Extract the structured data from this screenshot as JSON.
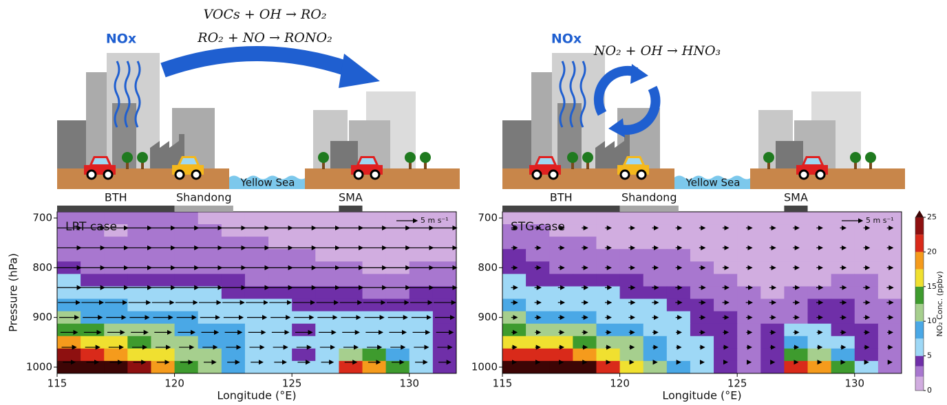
{
  "illustration": {
    "left": {
      "label": "NOx",
      "equations": [
        "VOCs + OH → RO₂",
        "RO₂ + NO → RONO₂"
      ],
      "sea": "Yellow Sea"
    },
    "right": {
      "label": "NOx",
      "equations": [
        "NO₂ + OH → HNO₃"
      ],
      "sea": "Yellow Sea"
    }
  },
  "chart_data": [
    {
      "type": "contour",
      "title": "LRT case",
      "xlabel": "Longitude (°E)",
      "ylabel": "Pressure (hPa)",
      "xlim": [
        115,
        132
      ],
      "xticks": [
        115,
        120,
        125,
        130
      ],
      "ylim": [
        1012.5,
        687.5
      ],
      "yticks": [
        700,
        800,
        900,
        1000
      ],
      "x": [
        115.5,
        116.5,
        117.5,
        118.5,
        119.5,
        120.5,
        121.5,
        122.5,
        123.5,
        124.5,
        125.5,
        126.5,
        127.5,
        128.5,
        129.5,
        130.5,
        131.5
      ],
      "y": [
        700,
        725,
        750,
        775,
        800,
        825,
        850,
        875,
        900,
        925,
        950,
        975,
        1000
      ],
      "z": [
        [
          2.5,
          2.5,
          2.5,
          2.5,
          2.5,
          2.5,
          1.5,
          1.5,
          1.5,
          1.5,
          1.5,
          1.5,
          1.5,
          1.5,
          1.5,
          1.5,
          1.5
        ],
        [
          2.5,
          2.5,
          1.5,
          2.5,
          2.5,
          2.5,
          2.5,
          1.5,
          1.5,
          1.5,
          1.5,
          1.5,
          1.5,
          1.5,
          1.5,
          1.5,
          1.5
        ],
        [
          2.5,
          2.5,
          2.5,
          2.5,
          2.5,
          2.5,
          2.5,
          2.5,
          2.5,
          1.5,
          1.5,
          1.5,
          1.5,
          1.5,
          1.5,
          1.5,
          1.5
        ],
        [
          3,
          3,
          2.5,
          2.5,
          2.5,
          2.5,
          2.5,
          2.5,
          2.5,
          2.5,
          2.5,
          1.5,
          1.5,
          1.5,
          1.5,
          1.5,
          1.5
        ],
        [
          4,
          3,
          3,
          3,
          3,
          3,
          3,
          3,
          3,
          3,
          3,
          2.5,
          2.5,
          1.5,
          1.5,
          2.5,
          2.5
        ],
        [
          6,
          4,
          4,
          4,
          4,
          4,
          4,
          4,
          3,
          3,
          3,
          3,
          3,
          2.5,
          2.5,
          3,
          3
        ],
        [
          7,
          6,
          6,
          6,
          6,
          6,
          6,
          4.5,
          4.5,
          4.5,
          4.5,
          4.5,
          4.5,
          3,
          2.5,
          4,
          4
        ],
        [
          9,
          8,
          8,
          7,
          7,
          7,
          6,
          6,
          6,
          6,
          4.5,
          4.5,
          4.5,
          4.5,
          4.5,
          4.5,
          4.5
        ],
        [
          11,
          9,
          9,
          9,
          8,
          8,
          7,
          6,
          6,
          6,
          6,
          6,
          6,
          6,
          6,
          6,
          4.5
        ],
        [
          14,
          13,
          12,
          11,
          10,
          9,
          8,
          8,
          6,
          6,
          4.5,
          6,
          6,
          6,
          6,
          6,
          4.5
        ],
        [
          18,
          17,
          16,
          14,
          12,
          11,
          9,
          8,
          7,
          6,
          6,
          6,
          6,
          6,
          6,
          6,
          4.5
        ],
        [
          23,
          21,
          19,
          17,
          15,
          12,
          10,
          9,
          7,
          6,
          4.5,
          6,
          12,
          13,
          8,
          6,
          4.5
        ],
        [
          27,
          27,
          26,
          23,
          19,
          14,
          11,
          9,
          7,
          6,
          6,
          6,
          22,
          19,
          14,
          7,
          4.5
        ]
      ],
      "regions": [
        {
          "name": "BTH",
          "range": [
            115,
            120
          ],
          "color": "#444444"
        },
        {
          "name": "Shandong",
          "range": [
            120,
            122.5
          ],
          "color": "#a6a6a6"
        },
        {
          "name": "SMA",
          "range": [
            127,
            128
          ],
          "color": "#444444"
        }
      ],
      "wind": {
        "p": [
          720,
          760,
          800,
          840,
          870,
          900,
          930,
          960,
          990
        ],
        "u": [
          5,
          5,
          5,
          5,
          4.5,
          4,
          3.5,
          3,
          2.5
        ],
        "key": {
          "value": 5,
          "label": "5 m s⁻¹"
        }
      }
    },
    {
      "type": "contour",
      "title": "STG case",
      "xlabel": "Longitude (°E)",
      "xlim": [
        115,
        132
      ],
      "xticks": [
        115,
        120,
        125,
        130
      ],
      "ylim": [
        1012.5,
        687.5
      ],
      "yticks": [
        700,
        800,
        900,
        1000
      ],
      "x": [
        115.5,
        116.5,
        117.5,
        118.5,
        119.5,
        120.5,
        121.5,
        122.5,
        123.5,
        124.5,
        125.5,
        126.5,
        127.5,
        128.5,
        129.5,
        130.5,
        131.5
      ],
      "y": [
        700,
        725,
        750,
        775,
        800,
        825,
        850,
        875,
        900,
        925,
        950,
        975,
        1000
      ],
      "z": [
        [
          1.5,
          1.5,
          1.5,
          1.5,
          1.5,
          1.5,
          1.5,
          1.5,
          1.5,
          1.5,
          1.5,
          1.5,
          1.5,
          1.5,
          1.5,
          1.5,
          1.5
        ],
        [
          3,
          2.5,
          1.5,
          1.5,
          1.5,
          1.5,
          1.5,
          1.5,
          1.5,
          1.5,
          1.5,
          1.5,
          1.5,
          1.5,
          1.5,
          1.5,
          1.5
        ],
        [
          3,
          3,
          2.5,
          2.5,
          1.5,
          1.5,
          1.5,
          1.5,
          1.5,
          1.5,
          1.5,
          1.5,
          1.5,
          1.5,
          1.5,
          1.5,
          1.5
        ],
        [
          4,
          3,
          3,
          2.5,
          2.5,
          2.5,
          2.5,
          2.5,
          1.5,
          1.5,
          1.5,
          1.5,
          1.5,
          1.5,
          1.5,
          1.5,
          1.5
        ],
        [
          4.5,
          4,
          3,
          3,
          3,
          3,
          3,
          3,
          2.5,
          1.5,
          1.5,
          1.5,
          1.5,
          1.5,
          1.5,
          1.5,
          1.5
        ],
        [
          6,
          4.5,
          4,
          4,
          4,
          4,
          3,
          3,
          3,
          2.5,
          1.5,
          1.5,
          1.5,
          1.5,
          2.5,
          2.5,
          1.5
        ],
        [
          7,
          6,
          6,
          6,
          6,
          4.5,
          4.5,
          4,
          3,
          3,
          2.5,
          1.5,
          2.5,
          3,
          3,
          3,
          1.5
        ],
        [
          8,
          7,
          7,
          6,
          6,
          6,
          6,
          4.5,
          4.5,
          3,
          3,
          2.5,
          3,
          4,
          4,
          3,
          2.5
        ],
        [
          10,
          9,
          8,
          8,
          7,
          6,
          6,
          6,
          4.5,
          4,
          3,
          3,
          3,
          4.5,
          4.5,
          3,
          2.5
        ],
        [
          13,
          12,
          11,
          10,
          9,
          8,
          7,
          6,
          4.5,
          4,
          3,
          4,
          6,
          6,
          4.5,
          4,
          2.5
        ],
        [
          17,
          16,
          15,
          14,
          11,
          10,
          8,
          7,
          6,
          4.5,
          3,
          4,
          9,
          7,
          6,
          4,
          2.5
        ],
        [
          22,
          21,
          20,
          19,
          15,
          12,
          9,
          7,
          6,
          4.5,
          3,
          4.5,
          14,
          12,
          9,
          4.5,
          3
        ],
        [
          27,
          27,
          26,
          25,
          20,
          15,
          10,
          8,
          6,
          4.5,
          3,
          4.5,
          21,
          18,
          13,
          6,
          3
        ]
      ],
      "regions": [
        {
          "name": "BTH",
          "range": [
            115,
            120
          ],
          "color": "#444444"
        },
        {
          "name": "Shandong",
          "range": [
            120,
            122.5
          ],
          "color": "#a6a6a6"
        },
        {
          "name": "SMA",
          "range": [
            127,
            128
          ],
          "color": "#444444"
        }
      ],
      "wind": {
        "p": [
          720,
          760,
          800,
          840,
          870,
          900,
          930,
          960,
          990
        ],
        "u": [
          1.2,
          1.2,
          1.2,
          1.3,
          1.3,
          1.2,
          1.1,
          1,
          0.8
        ],
        "key": {
          "value": 5,
          "label": "5 m s⁻¹"
        }
      },
      "colorbar": {
        "label": "NO₂ Conc. (ppbv)",
        "ticks": [
          0,
          5,
          10,
          15,
          20,
          25
        ],
        "levels": [
          0,
          2,
          3.5,
          5,
          7.5,
          10,
          12.5,
          15,
          17.5,
          20,
          22.5,
          25
        ],
        "colors": [
          "#d1ade0",
          "#a877cf",
          "#6f2fa8",
          "#9ed8f6",
          "#4aa8e6",
          "#a6cf8e",
          "#3e9b2e",
          "#f0e030",
          "#f59b1c",
          "#d92a1a",
          "#8e1010"
        ],
        "over_color": "#3d0505"
      }
    }
  ]
}
